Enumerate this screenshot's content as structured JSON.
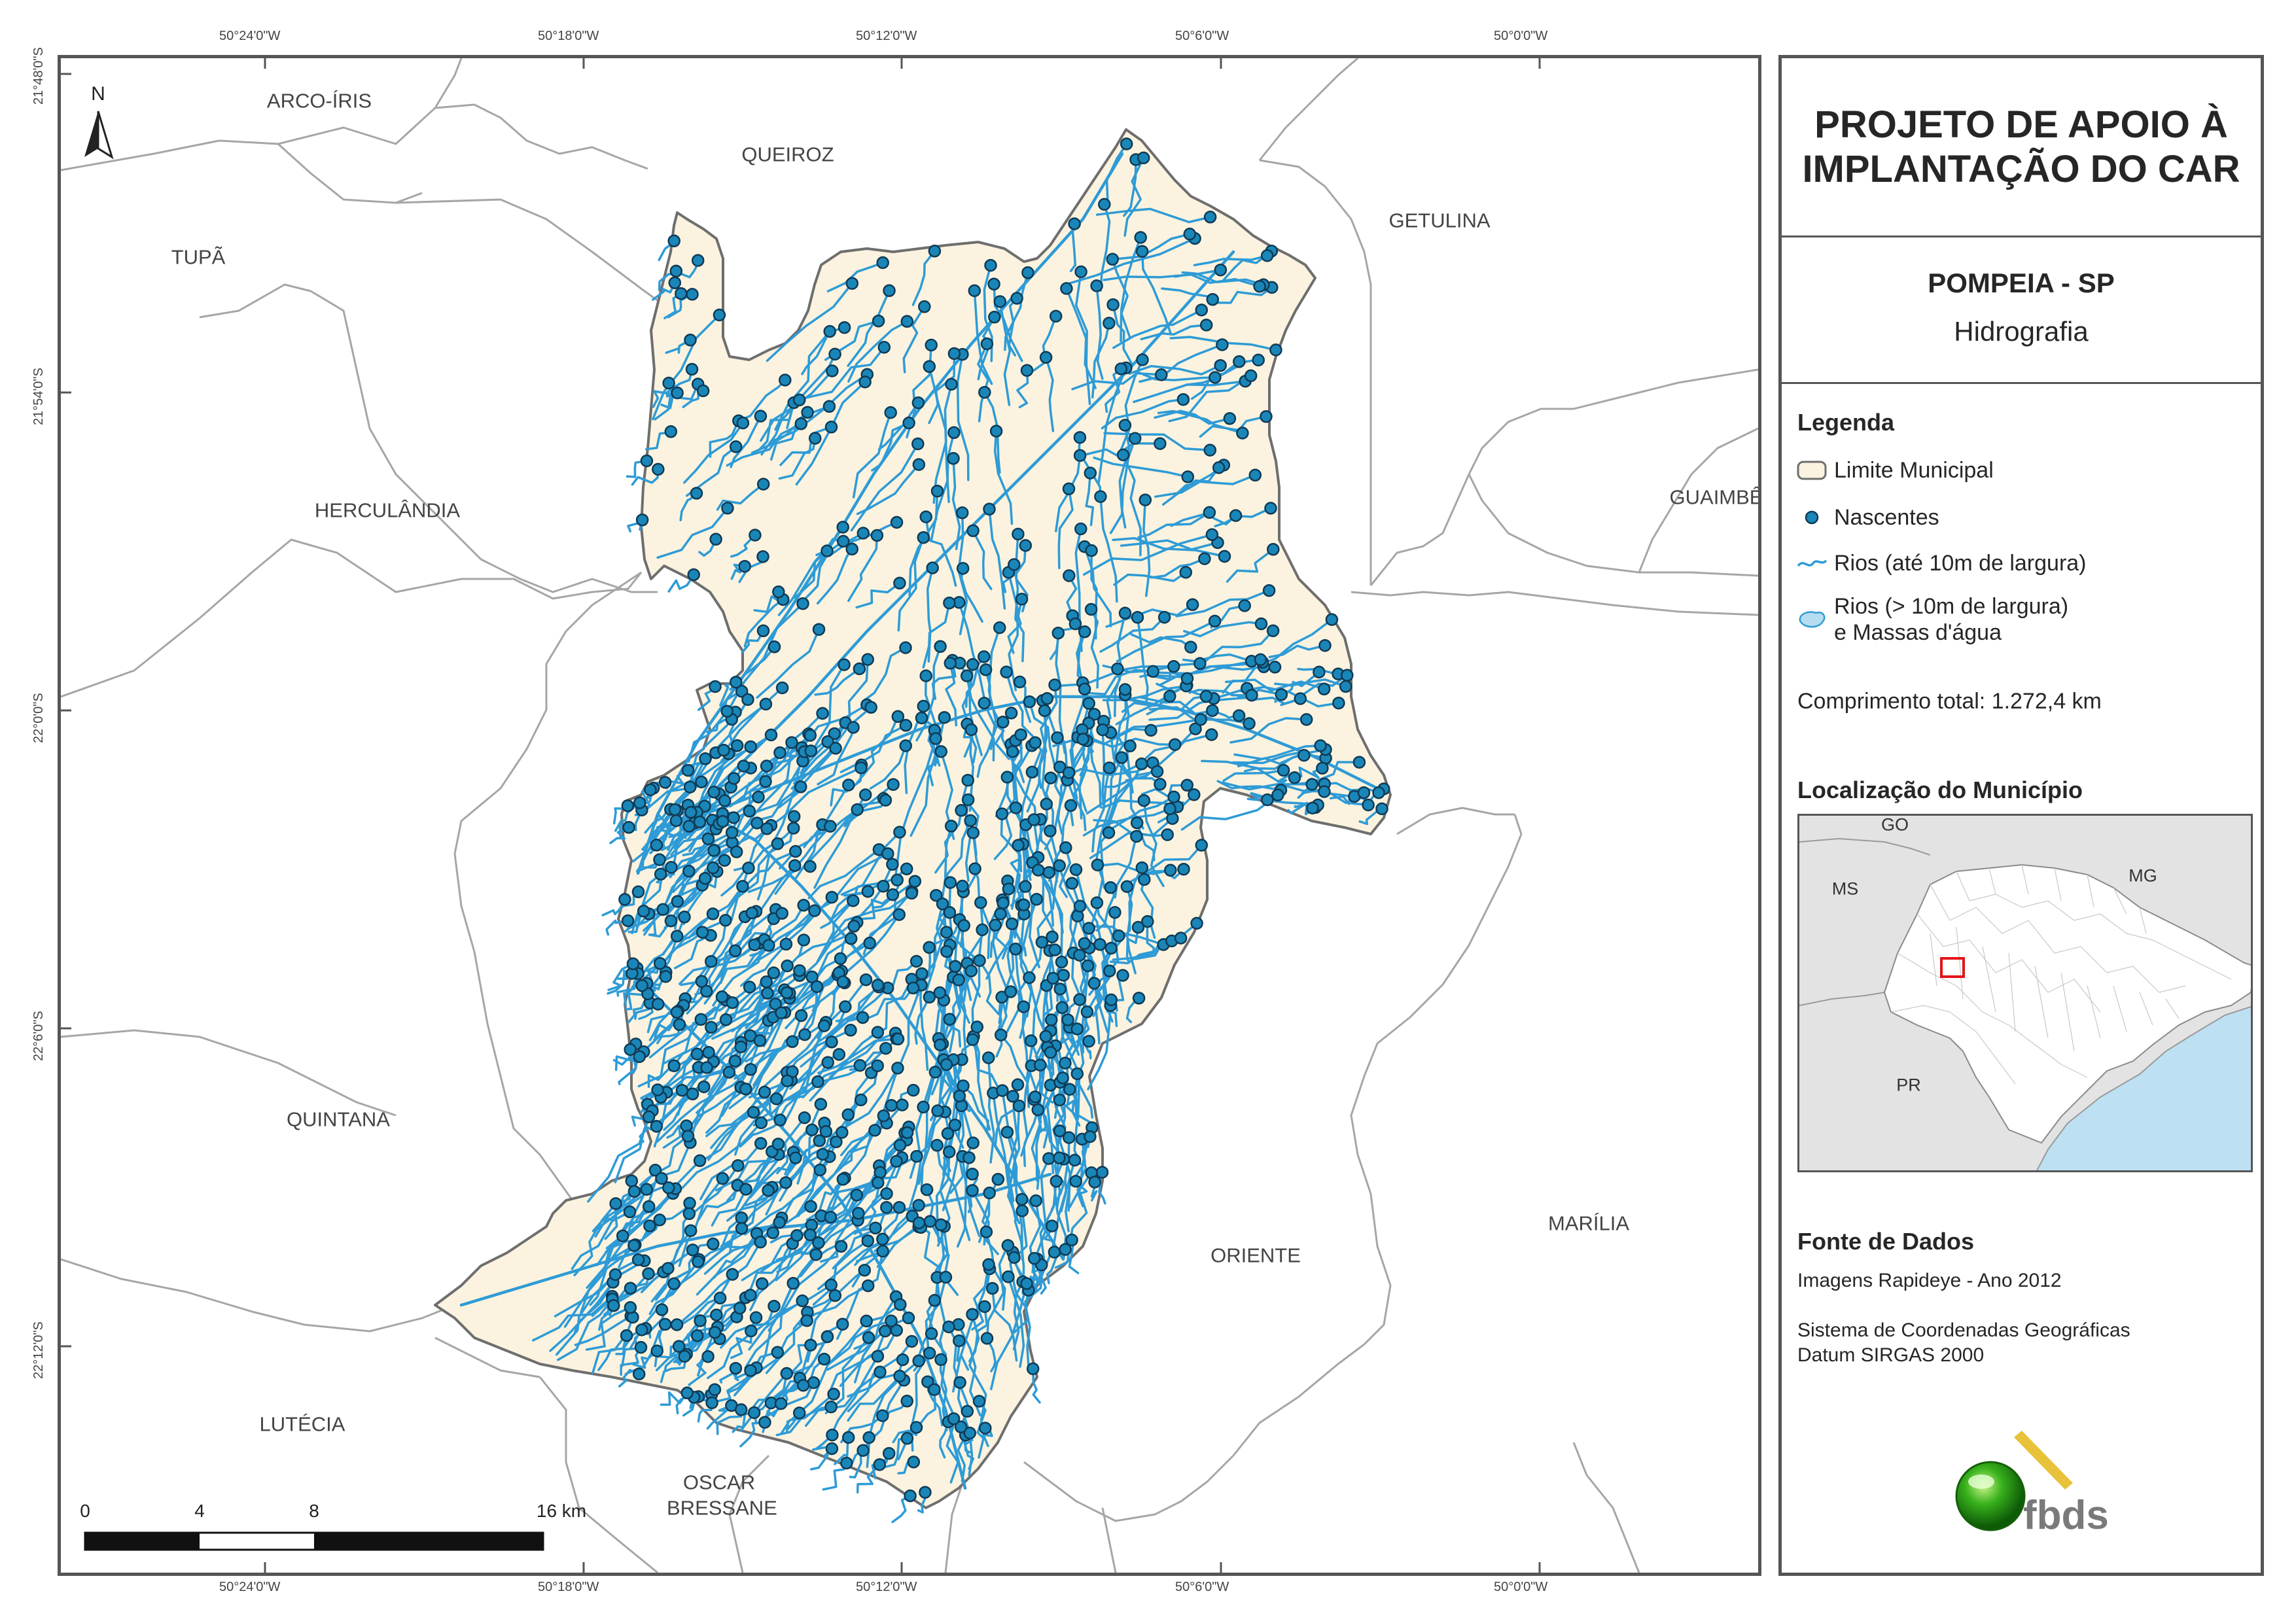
{
  "coordinates": {
    "longitude_top": [
      "50°24'0\"W",
      "50°18'0\"W",
      "50°12'0\"W",
      "50°6'0\"W",
      "50°0'0\"W"
    ],
    "longitude_bottom": [
      "50°24'0\"W",
      "50°18'0\"W",
      "50°12'0\"W",
      "50°6'0\"W",
      "50°0'0\"W"
    ],
    "latitude_left": [
      "21°48'0\"S",
      "21°54'0\"S",
      "22°0'0\"S",
      "22°6'0\"S",
      "22°12'0\"S"
    ]
  },
  "map": {
    "neighbors": [
      "ARCO-ÍRIS",
      "QUEIROZ",
      "TUPÃ",
      "GETULINA",
      "HERCULÂNDIA",
      "GUAIMBÊ",
      "QUINTANA",
      "ORIENTE",
      "MARÍLIA",
      "LUTÉCIA",
      "OSCAR BRESSANE"
    ],
    "north_arrow_label": "N",
    "scale_labels": [
      "0",
      "4",
      "8",
      "16 km"
    ],
    "colors": {
      "municipality_fill": "#fbf3df",
      "municipality_border": "#6e6e6e",
      "river": "#2e9bd6",
      "spring_fill": "#1a86b8",
      "spring_border": "#0f3a55",
      "neighbor_border": "#a0a0a0"
    }
  },
  "panel": {
    "title_line1": "PROJETO DE APOIO À",
    "title_line2": "IMPLANTAÇÃO DO CAR",
    "municipality": "POMPEIA - SP",
    "subtitle": "Hidrografia",
    "legend": {
      "heading": "Legenda",
      "items": [
        {
          "label": "Limite Municipal",
          "icon": "municipal-boundary-icon"
        },
        {
          "label": "Nascentes",
          "icon": "spring-point-icon"
        },
        {
          "label": "Rios (até 10m de largura)",
          "icon": "river-line-icon"
        },
        {
          "label": "Rios (> 10m de largura)",
          "label2": "e Massas d'água",
          "icon": "water-body-icon"
        }
      ],
      "total_length": "Comprimento total: 1.272,4 km"
    },
    "location": {
      "heading": "Localização do Município",
      "labels": [
        "GO",
        "MS",
        "MG",
        "PR"
      ]
    },
    "sources": {
      "heading": "Fonte de Dados",
      "line1": "Imagens Rapideye - Ano 2012",
      "line2": "Sistema de Coordenadas Geográficas",
      "line3": "Datum SIRGAS 2000"
    },
    "logo_text": "fbds"
  }
}
